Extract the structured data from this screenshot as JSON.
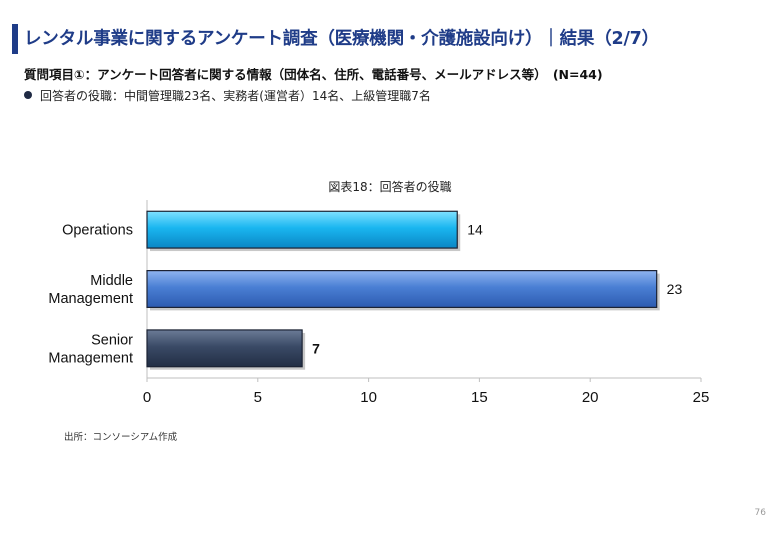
{
  "header": {
    "title": "レンタル事業に関するアンケート調査（医療機関・介護施設向け）｜結果（2/7）",
    "question": "質問項目①：アンケート回答者に関する情報（団体名、住所、電話番号、メールアドレス等）　(N=44)",
    "bullet": "回答者の役職：中間管理職23名、実務者(運営者）14名、上級管理職7名"
  },
  "chart_title": "図表18：回答者の役職",
  "source": "出所：コンソーシアム作成",
  "page_number": "76",
  "colors": {
    "title": "#1f3c88",
    "operations": "#1ab6f0",
    "middle": "#4a7fd4",
    "senior": "#3a4a66"
  },
  "chart_data": {
    "type": "bar",
    "orientation": "horizontal",
    "categories": [
      "Operations",
      "Middle Management",
      "Senior Management"
    ],
    "category_lines": [
      [
        "Operations"
      ],
      [
        "Middle",
        "Management"
      ],
      [
        "Senior",
        "Management"
      ]
    ],
    "values": [
      14,
      23,
      7
    ],
    "xlim": [
      0,
      25
    ],
    "xticks": [
      0,
      5,
      10,
      15,
      20,
      25
    ],
    "title": "図表18：回答者の役職",
    "legend": "none",
    "grid": false
  }
}
